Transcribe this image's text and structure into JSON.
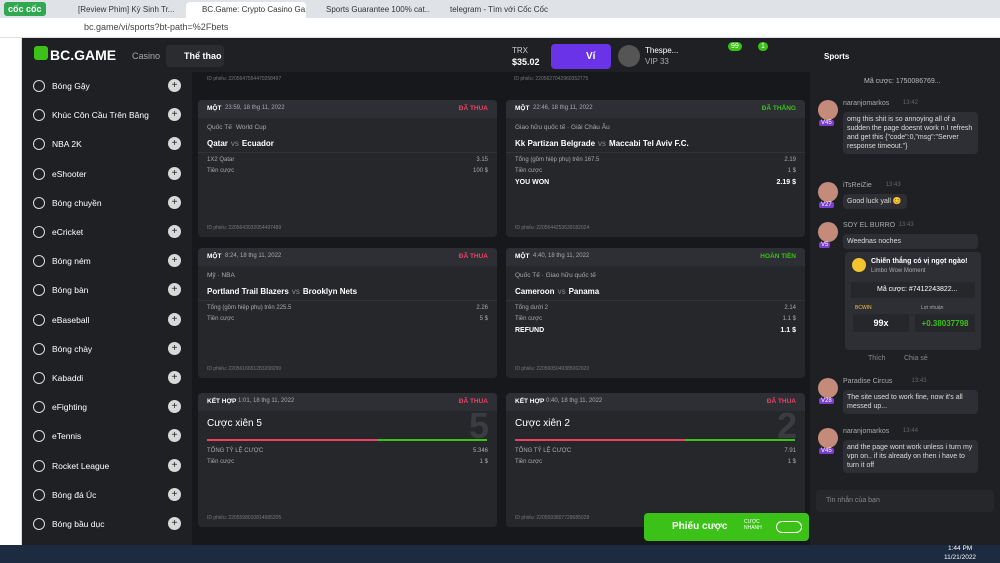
{
  "browser": {
    "brand": "cốc cốc",
    "tabs": [
      "[Review Phim] Kỳ Sinh Tr...",
      "BC.Game: Crypto Casino Ga...",
      "Sports Guarantee 100% cat...",
      "telegram - Tìm với Cốc Cốc"
    ],
    "address": "bc.game/vi/sports?bt-path=%2Fbets"
  },
  "header": {
    "logo": "BC.GAME",
    "nav": [
      "Casino",
      "Thể thao"
    ],
    "currency": "TRX",
    "balance": "$35.02",
    "wallet": "Ví",
    "user": "Thespe...",
    "vip": "VIP 33",
    "badges": [
      "99",
      "1"
    ]
  },
  "sidebar": {
    "sports": [
      "Bóng Gậy",
      "Khúc Côn Cầu Trên Băng",
      "NBA 2K",
      "eShooter",
      "Bóng chuyền",
      "eCricket",
      "Bóng ném",
      "Bóng bàn",
      "eBaseball",
      "Bóng chày",
      "Kabaddi",
      "eFighting",
      "eTennis",
      "Rocket League",
      "Bóng đá Úc",
      "Bóng bầu dục"
    ]
  },
  "bets": {
    "top_ids": [
      "ID phiếu: 2205647554470258497",
      "ID phiếu: 2205627042960352775"
    ],
    "cards": [
      {
        "kind": "MỘT",
        "time": "23:59, 18 thg 11, 2022",
        "status": "ĐÃ THUA",
        "league": [
          "Quốc Tế",
          "World Cup"
        ],
        "match": [
          "Qatar",
          "vs",
          "Ecuador"
        ],
        "rows": [
          [
            "1X2 Qatar",
            "3.15"
          ],
          [
            "Tiền cược",
            "100 $"
          ]
        ],
        "id": "ID phiếu: 2205643032054497489"
      },
      {
        "kind": "MỘT",
        "time": "22:46, 18 thg 11, 2022",
        "status": "ĐÃ THẮNG",
        "league": [
          "Giao hữu quốc tế · Giải Châu Âu"
        ],
        "match": [
          "Kk Partizan Belgrade",
          "vs",
          "Maccabi Tel Aviv F.C."
        ],
        "rows": [
          [
            "Tổng (gồm hiệp phụ) trên 167.5",
            "2.19"
          ],
          [
            "Tiền cược",
            "1 $"
          ],
          [
            "YOU WON",
            "2.19 $"
          ]
        ],
        "id": "ID phiếu: 2205644253639182024"
      },
      {
        "kind": "MỘT",
        "time": "8:24, 18 thg 11, 2022",
        "status": "ĐÃ THUA",
        "league": [
          "Mỹ · NBA"
        ],
        "match": [
          "Portland Trail Blazers",
          "vs",
          "Brooklyn Nets"
        ],
        "rows": [
          [
            "Tổng (gồm hiệp phụ) trên 225.5",
            "2.26"
          ],
          [
            "Tiền cược",
            "5 $"
          ]
        ],
        "id": "ID phiếu: 2205616651283208290"
      },
      {
        "kind": "MỘT",
        "time": "4:40, 18 thg 11, 2022",
        "status": "HOÀN TIỀN",
        "league": [
          "Quốc Tế · Giao hữu quốc tế"
        ],
        "match": [
          "Cameroon",
          "vs",
          "Panama"
        ],
        "rows": [
          [
            "Tổng dưới 2",
            "2.14"
          ],
          [
            "Tiền cược",
            "1.1 $"
          ],
          [
            "REFUND",
            "1.1 $"
          ]
        ],
        "id": "ID phiếu: 2205605049385062920"
      },
      {
        "kind": "KẾT HỢP",
        "time": "1:01, 18 thg 11, 2022",
        "status": "ĐÃ THUA",
        "title": "Cược xiên 5",
        "big": "5",
        "rows": [
          [
            "TỔNG TỶ LỆ CƯỢC",
            "5.346"
          ],
          [
            "Tiền cược",
            "1 $"
          ]
        ],
        "id": "ID phiếu: 2205598010814985205"
      },
      {
        "kind": "KẾT HỢP",
        "time": "0:40, 18 thg 11, 2022",
        "status": "ĐÃ THUA",
        "title": "Cược xiên 2",
        "big": "2",
        "rows": [
          [
            "TỔNG TỶ LỆ CƯỢC",
            "7.91"
          ],
          [
            "Tiền cược",
            "1 $"
          ]
        ],
        "id": "ID phiếu: 2205593807728685028"
      }
    ],
    "betslip": "Phiếu cược",
    "quick": "CƯỢC NHANH"
  },
  "chat": {
    "tab": "Sports",
    "top": "Mã cược: 1750086769...",
    "messages": [
      {
        "user": "naranjomarkos",
        "time": "13:42",
        "level": "V45",
        "text": "omg this shit is so annoying all of a sudden the page doesnt work n I refresh and get this {\"code\":0,\"msg\":\"Server response timeout.\"}"
      },
      {
        "user": "iTsReiZie",
        "time": "13:43",
        "level": "V27",
        "text": "Good luck yall 😊"
      },
      {
        "user": "SOY EL BURRO",
        "time": "13:43",
        "level": "V5",
        "text": "Weednas noches"
      },
      {
        "user": "Paradise Circus",
        "time": "13:43",
        "level": "V28",
        "text": "The site used to work fine, now it's all messed up..."
      },
      {
        "user": "naranjomarkos",
        "time": "13:44",
        "level": "V45",
        "text": "and the page wont work unless i turn my vpn on.. if its already on then i have to turn it off"
      }
    ],
    "share": {
      "title": "Chiến thắng có vị ngọt ngào!",
      "game": "Limbo Wow Moment",
      "bet": "Mã cược: #7412243822...",
      "tag": "BCWIN",
      "profit_label": "Lợi nhuận",
      "multiplier": "99x",
      "profit": "+0.38037798",
      "like": "Thích",
      "share": "Chia sẻ"
    },
    "input": "Tin nhắn của bạn"
  },
  "taskbar": {
    "time": "1:44 PM",
    "date": "11/21/2022"
  }
}
